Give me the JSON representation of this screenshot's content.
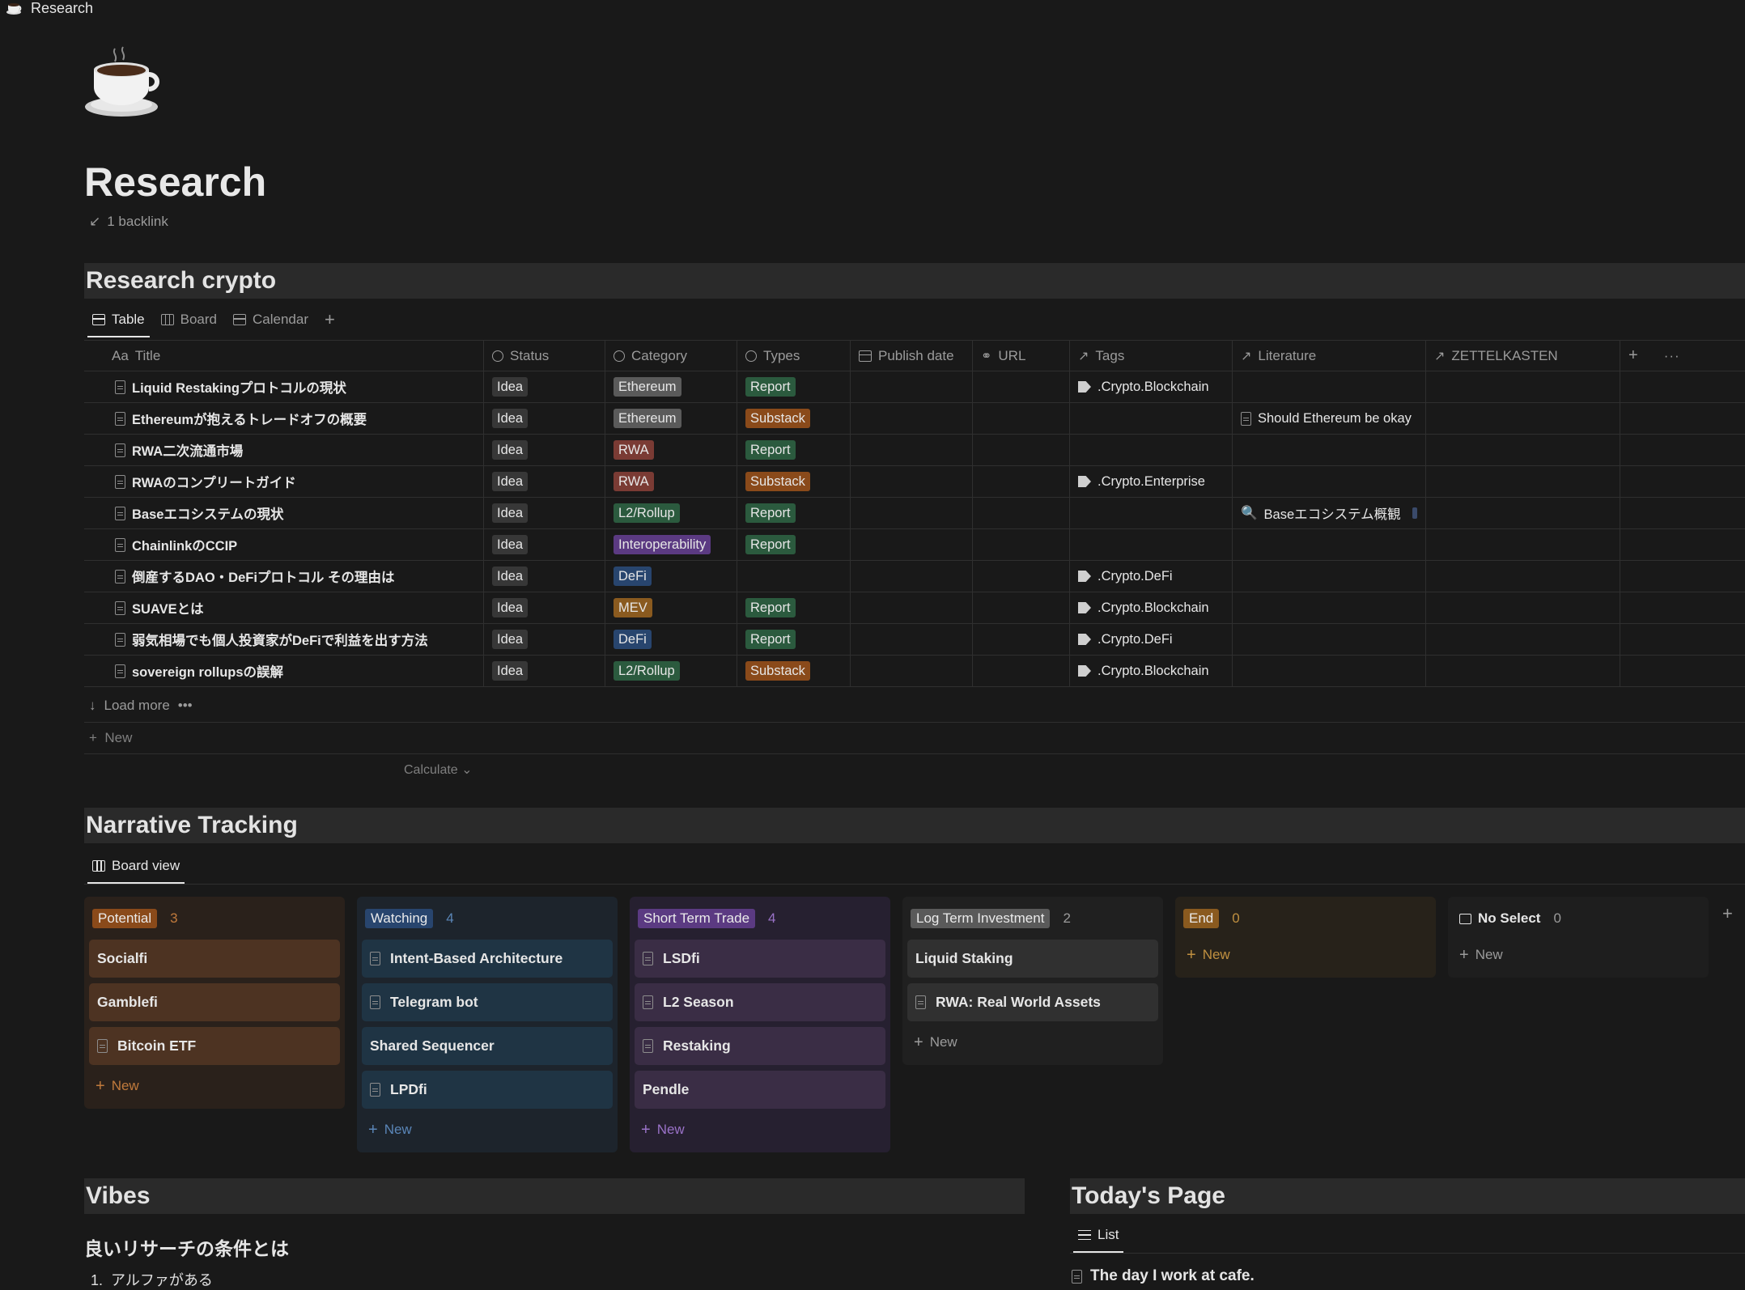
{
  "topbar": {
    "title": "Research"
  },
  "page": {
    "title": "Research",
    "backlink": "1 backlink"
  },
  "research": {
    "header": "Research crypto",
    "tabs": [
      "Table",
      "Board",
      "Calendar"
    ],
    "columns": [
      "Title",
      "Status",
      "Category",
      "Types",
      "Publish date",
      "URL",
      "Tags",
      "Literature",
      "ZETTELKASTEN"
    ],
    "title_prefix": "Aa",
    "rows": [
      {
        "title": "Liquid Restakingプロトコルの現状",
        "status": "Idea",
        "category": "Ethereum",
        "type": "Report",
        "tag": ".Crypto.Blockchain",
        "literature": ""
      },
      {
        "title": "Ethereumが抱えるトレードオフの概要",
        "status": "Idea",
        "category": "Ethereum",
        "type": "Substack",
        "tag": "",
        "literature": "Should Ethereum be okay"
      },
      {
        "title": "RWA二次流通市場",
        "status": "Idea",
        "category": "RWA",
        "type": "Report",
        "tag": "",
        "literature": ""
      },
      {
        "title": "RWAのコンプリートガイド",
        "status": "Idea",
        "category": "RWA",
        "type": "Substack",
        "tag": ".Crypto.Enterprise",
        "literature": ""
      },
      {
        "title": "Baseエコシステムの現状",
        "status": "Idea",
        "category": "L2/Rollup",
        "type": "Report",
        "tag": "",
        "literature": "Baseエコシステム概観"
      },
      {
        "title": "ChainlinkのCCIP",
        "status": "Idea",
        "category": "Interoperability",
        "type": "Report",
        "tag": "",
        "literature": ""
      },
      {
        "title": "倒産するDAO・DeFiプロトコル その理由は",
        "status": "Idea",
        "category": "DeFi",
        "type": "",
        "tag": ".Crypto.DeFi",
        "literature": ""
      },
      {
        "title": "SUAVEとは",
        "status": "Idea",
        "category": "MEV",
        "type": "Report",
        "tag": ".Crypto.Blockchain",
        "literature": ""
      },
      {
        "title": "弱気相場でも個人投資家がDeFiで利益を出す方法",
        "status": "Idea",
        "category": "DeFi",
        "type": "Report",
        "tag": ".Crypto.DeFi",
        "literature": ""
      },
      {
        "title": "sovereign rollupsの誤解",
        "status": "Idea",
        "category": "L2/Rollup",
        "type": "Substack",
        "tag": ".Crypto.Blockchain",
        "literature": ""
      }
    ],
    "load_more": "Load more",
    "new_label": "New",
    "calculate": "Calculate"
  },
  "narrative": {
    "header": "Narrative Tracking",
    "tab": "Board view",
    "groups": [
      {
        "name": "Potential",
        "count": "3",
        "cards": [
          "Socialfi",
          "Gamblefi",
          "Bitcoin ETF"
        ],
        "new": "New"
      },
      {
        "name": "Watching",
        "count": "4",
        "cards": [
          "Intent-Based Architecture",
          "Telegram bot",
          "Shared Sequencer",
          "LPDfi"
        ],
        "new": "New"
      },
      {
        "name": "Short Term Trade",
        "count": "4",
        "cards": [
          "LSDfi",
          "L2 Season",
          "Restaking",
          "Pendle"
        ],
        "new": "New"
      },
      {
        "name": "Log Term Investment",
        "count": "2",
        "cards": [
          "Liquid Staking",
          "RWA: Real World Assets"
        ],
        "new": "New"
      },
      {
        "name": "End",
        "count": "0",
        "cards": [],
        "new": "New"
      },
      {
        "name": "No Select",
        "count": "0",
        "cards": [],
        "new": "New"
      }
    ]
  },
  "vibes": {
    "header": "Vibes",
    "subheading": "良いリサーチの条件とは",
    "items": [
      "アルファがある"
    ]
  },
  "today": {
    "header": "Today's Page",
    "tab": "List",
    "items": [
      "The day I work at cafe."
    ]
  },
  "colors": {
    "background": "#191919",
    "potential": "#8a4a1a",
    "watching": "#28456e",
    "short_term": "#5b3a82",
    "long_term": "#5a5a5a",
    "end": "#8a5a1f"
  }
}
